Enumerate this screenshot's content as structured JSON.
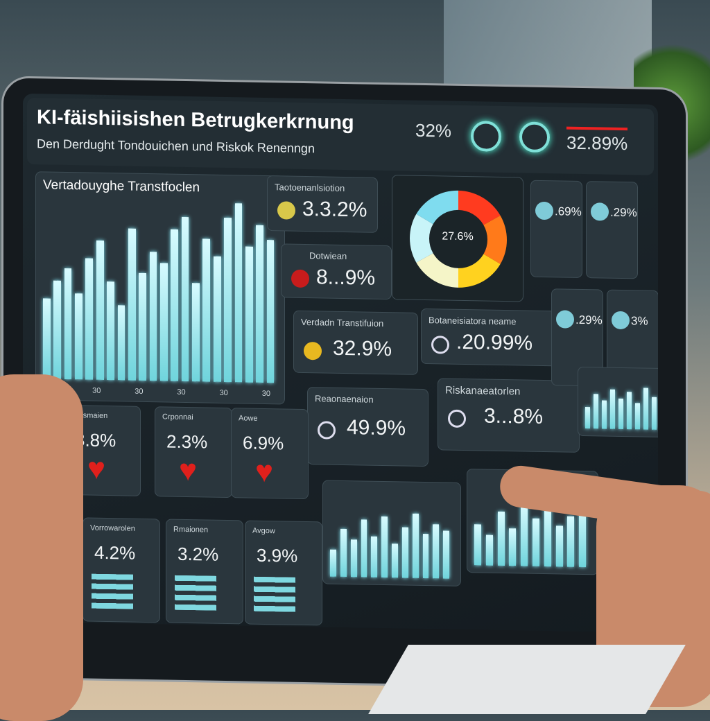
{
  "header": {
    "title": "KI-fäishiisishen Betrugkerkrnung",
    "subtitle": "Den Derdught Tondouichen und Riskok Renenngn",
    "stats": [
      {
        "value": "32%"
      },
      {
        "value": "32.89%"
      }
    ]
  },
  "chart_main": {
    "title": "Vertadouyghe Transtfoclen",
    "ticks": [
      "30",
      "30",
      "30",
      "30",
      "30",
      "30"
    ],
    "values": [
      45,
      55,
      62,
      48,
      68,
      78,
      55,
      42,
      85,
      60,
      72,
      66,
      85,
      92,
      55,
      80,
      70,
      92,
      100,
      76,
      88,
      80
    ]
  },
  "cards": [
    {
      "label": "Taotoenanlsiotion",
      "value": "3.3.2%"
    },
    {
      "label": "Dotwiean",
      "value": "8...9%"
    },
    {
      "label": "Verdadn Transtifuion",
      "value": "32.9%"
    },
    {
      "label": "Botaneisiatora neame",
      "value": ".20.99%"
    },
    {
      "label": "Riskanaeatorlen",
      "value": "3...8%"
    },
    {
      "label": "Reaonaenaion",
      "value": "49.9%"
    }
  ],
  "gauge": {
    "value": "27.6%",
    "segments": [
      "#ff3b1f",
      "#ff7a1a",
      "#ffd21f",
      "#f5f5c8",
      "#c8f4f8",
      "#7fdcef"
    ]
  },
  "mini_cards": [
    {
      "value": ".69%"
    },
    {
      "value": ".29%"
    },
    {
      "value": ".29%"
    },
    {
      "value": "3%"
    }
  ],
  "risk_cards": [
    {
      "label": "Dorsmaien",
      "value": "3.8%"
    },
    {
      "label": "Crponnai",
      "value": "2.3%"
    },
    {
      "label": "Aowe",
      "value": "6.9%"
    },
    {
      "label": "Vorrowarolen",
      "value": "4.2%"
    },
    {
      "label": "Rmaionen",
      "value": "3.2%"
    },
    {
      "label": "Avgow",
      "value": "3.9%"
    }
  ],
  "colors": {
    "accent": "#7fe0e8",
    "heart": "#e0201c"
  },
  "mini_chart_values": [
    [
      40,
      70,
      55,
      85,
      60,
      90,
      50,
      75,
      95,
      65,
      80,
      70
    ],
    [
      60,
      45,
      80,
      55,
      90,
      70,
      85,
      60,
      75,
      95
    ],
    [
      50,
      80,
      65,
      90,
      70,
      85,
      60,
      95,
      75
    ]
  ]
}
